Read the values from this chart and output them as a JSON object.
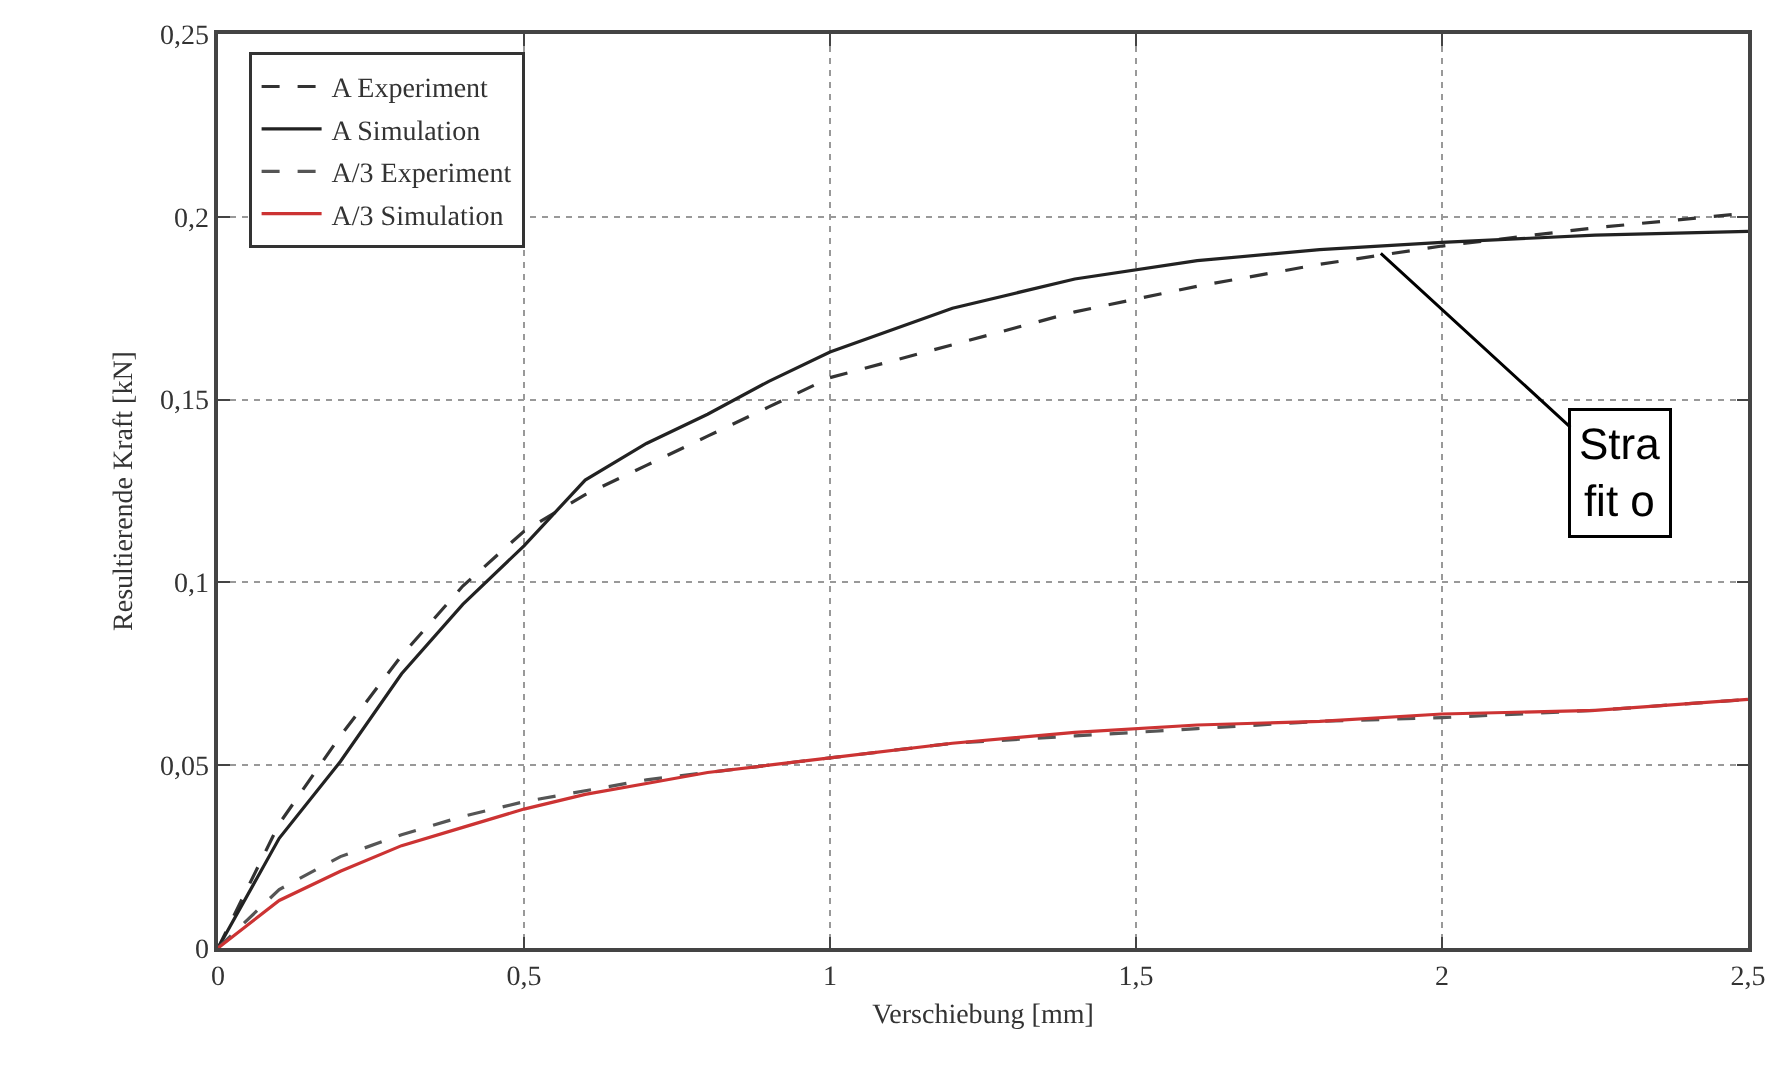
{
  "chart_data": {
    "type": "line",
    "xlabel": "Verschiebung [mm]",
    "ylabel": "Resultierende Kraft [kN]",
    "x": [
      0,
      0.1,
      0.2,
      0.3,
      0.4,
      0.5,
      0.6,
      0.7,
      0.8,
      0.9,
      1.0,
      1.2,
      1.4,
      1.6,
      1.8,
      2.0,
      2.25,
      2.5
    ],
    "series": [
      {
        "name": "A Experiment",
        "color": "#333333",
        "line_style": "dashed",
        "values": [
          0,
          0.034,
          0.058,
          0.08,
          0.099,
          0.114,
          0.124,
          0.132,
          0.14,
          0.148,
          0.156,
          0.165,
          0.174,
          0.181,
          0.187,
          0.192,
          0.197,
          0.201
        ]
      },
      {
        "name": "A Simulation",
        "color": "#222222",
        "line_style": "solid",
        "values": [
          0,
          0.03,
          0.051,
          0.075,
          0.094,
          0.11,
          0.128,
          0.138,
          0.146,
          0.155,
          0.163,
          0.175,
          0.183,
          0.188,
          0.191,
          0.193,
          0.195,
          0.196
        ]
      },
      {
        "name": "A/3 Experiment",
        "color": "#555555",
        "line_style": "dashed",
        "values": [
          0,
          0.016,
          0.025,
          0.031,
          0.036,
          0.04,
          0.043,
          0.046,
          0.048,
          0.05,
          0.052,
          0.056,
          0.058,
          0.06,
          0.062,
          0.063,
          0.065,
          0.068
        ]
      },
      {
        "name": "A/3 Simulation",
        "color": "#cc3333",
        "line_style": "solid",
        "values": [
          0,
          0.013,
          0.021,
          0.028,
          0.033,
          0.038,
          0.042,
          0.045,
          0.048,
          0.05,
          0.052,
          0.056,
          0.059,
          0.061,
          0.062,
          0.064,
          0.065,
          0.068
        ]
      }
    ],
    "xlim": [
      0,
      2.5
    ],
    "xticks": [
      0,
      {
        "value": 0.5,
        "label": "0,5"
      },
      1,
      {
        "value": 1.5,
        "label": "1,5"
      },
      2,
      {
        "value": 2.5,
        "label": "2,5"
      }
    ],
    "ylim": [
      0,
      0.25
    ],
    "yticks": [
      0,
      {
        "value": 0.05,
        "label": "0,05"
      },
      {
        "value": 0.1,
        "label": "0,1"
      },
      {
        "value": 0.15,
        "label": "0,15"
      },
      {
        "value": 0.2,
        "label": "0,2"
      },
      {
        "value": 0.25,
        "label": "0,25"
      }
    ],
    "grid": true,
    "legend": "top left",
    "marker": "none",
    "annotations": [
      {
        "text": "Stra\nfit o",
        "x": 1.9,
        "y": 0.19
      }
    ]
  }
}
